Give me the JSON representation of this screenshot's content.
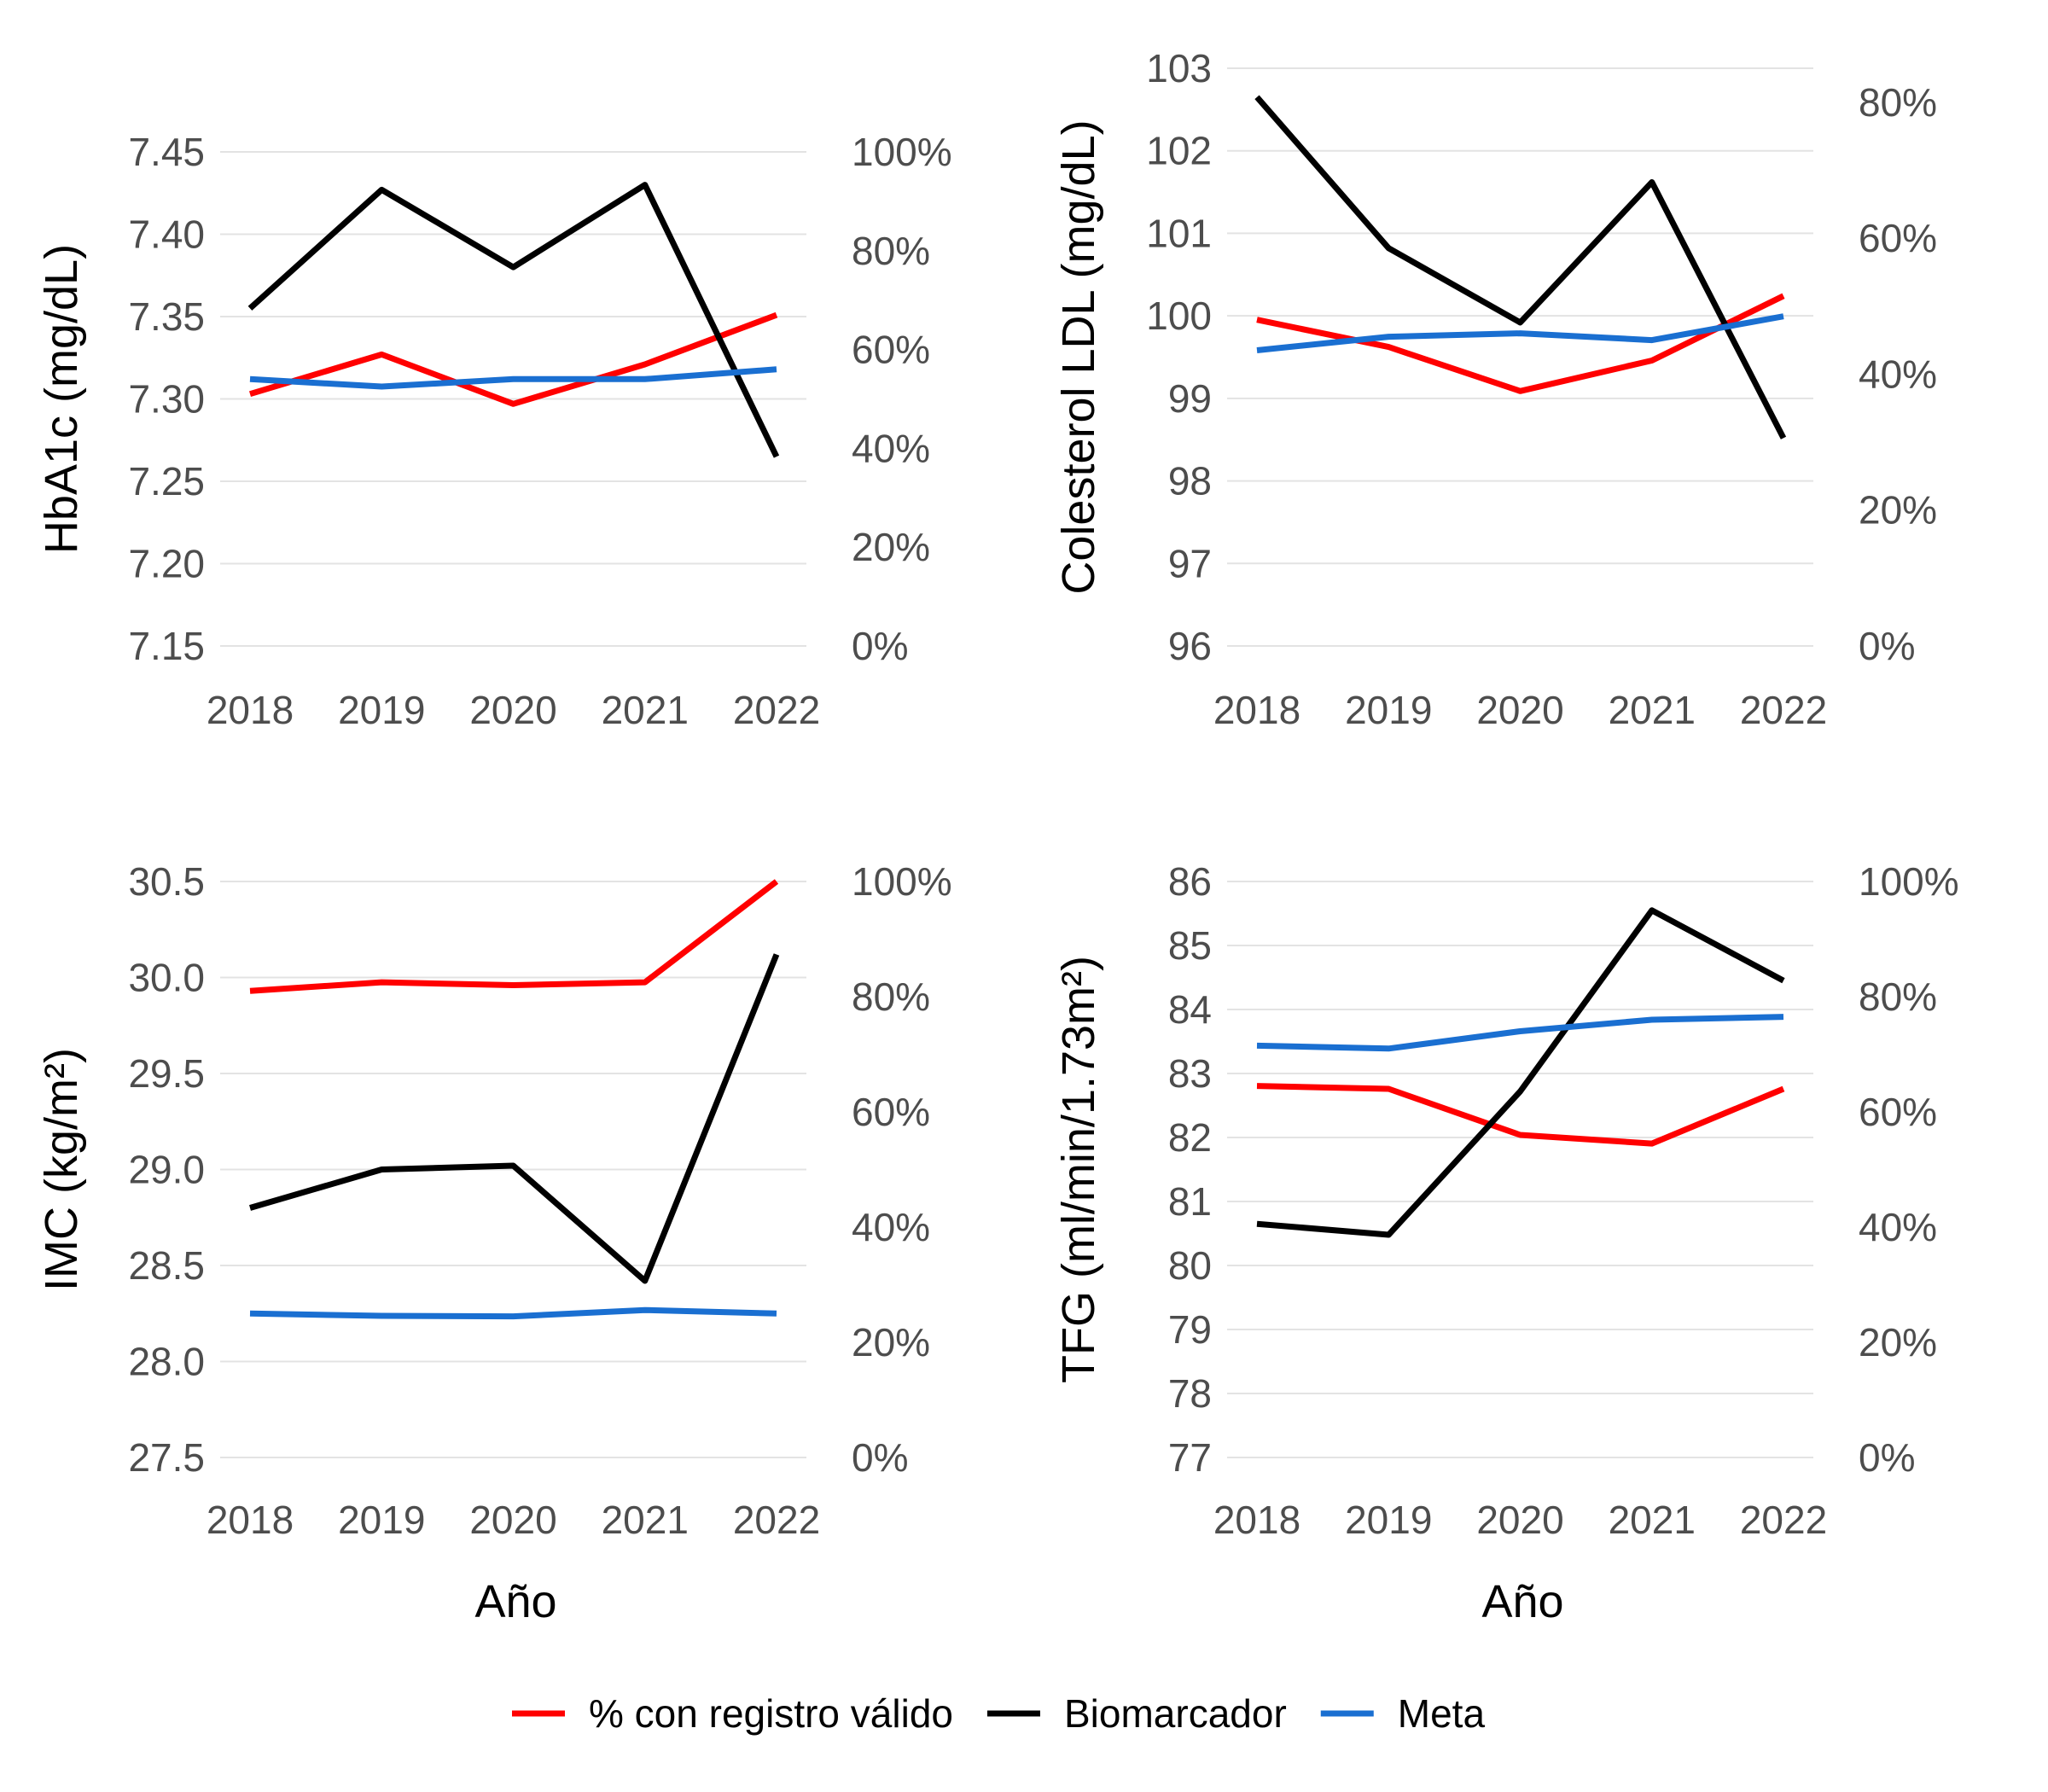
{
  "colors": {
    "valid": "#ff0000",
    "biomarker": "#000000",
    "target": "#1a6fd1"
  },
  "legend": {
    "items": [
      {
        "key": "valid",
        "label": "% con registro válido"
      },
      {
        "key": "biomarker",
        "label": "Biomarcador"
      },
      {
        "key": "target",
        "label": "Meta"
      }
    ]
  },
  "chart_data": [
    {
      "type": "line",
      "x": [
        2018,
        2019,
        2020,
        2021,
        2022
      ],
      "x_ticks": [
        "2018",
        "2019",
        "2020",
        "2021",
        "2022"
      ],
      "xlabel": "",
      "ylabel": "HbA1c (mg/dL)",
      "ylim": [
        7.15,
        7.45
      ],
      "y_ticks": [
        "7.15",
        "7.20",
        "7.25",
        "7.30",
        "7.35",
        "7.40",
        "7.45"
      ],
      "y2lim": [
        0,
        100
      ],
      "y2_ticks": [
        "0%",
        "20%",
        "40%",
        "60%",
        "80%",
        "100%"
      ],
      "grid": true,
      "series": [
        {
          "key": "valid",
          "name": "% con registro válido",
          "axis": "y2",
          "values": [
            51,
            59,
            49,
            57,
            67
          ]
        },
        {
          "key": "biomarker",
          "name": "Biomarcador",
          "axis": "y",
          "values": [
            7.355,
            7.427,
            7.38,
            7.43,
            7.265
          ]
        },
        {
          "key": "target",
          "name": "Meta",
          "axis": "y2",
          "values": [
            54,
            52.5,
            54,
            54,
            56
          ]
        }
      ]
    },
    {
      "type": "line",
      "x": [
        2018,
        2019,
        2020,
        2021,
        2022
      ],
      "x_ticks": [
        "2018",
        "2019",
        "2020",
        "2021",
        "2022"
      ],
      "xlabel": "",
      "ylabel": "Colesterol LDL (mg/dL)",
      "ylim": [
        96,
        103
      ],
      "y_ticks": [
        "96",
        "97",
        "98",
        "99",
        "100",
        "101",
        "102",
        "103"
      ],
      "y2lim": [
        0,
        85
      ],
      "y2_ticks": [
        "0%",
        "20%",
        "40%",
        "60%",
        "80%"
      ],
      "grid": true,
      "series": [
        {
          "key": "valid",
          "name": "% con registro válido",
          "axis": "y2",
          "values": [
            48,
            44,
            37.5,
            42,
            51.5
          ]
        },
        {
          "key": "biomarker",
          "name": "Biomarcador",
          "axis": "y",
          "values": [
            102.65,
            100.82,
            99.92,
            101.62,
            98.52
          ]
        },
        {
          "key": "target",
          "name": "Meta",
          "axis": "y2",
          "values": [
            43.5,
            45.5,
            46,
            45,
            48.5
          ]
        }
      ]
    },
    {
      "type": "line",
      "x": [
        2018,
        2019,
        2020,
        2021,
        2022
      ],
      "x_ticks": [
        "2018",
        "2019",
        "2020",
        "2021",
        "2022"
      ],
      "xlabel": "Año",
      "ylabel": "IMC (kg/m²)",
      "ylim": [
        27.5,
        30.5
      ],
      "y_ticks": [
        "27.5",
        "28.0",
        "28.5",
        "29.0",
        "29.5",
        "30.0",
        "30.5"
      ],
      "y2lim": [
        0,
        100
      ],
      "y2_ticks": [
        "0%",
        "20%",
        "40%",
        "60%",
        "80%",
        "100%"
      ],
      "grid": true,
      "series": [
        {
          "key": "valid",
          "name": "% con registro válido",
          "axis": "y2",
          "values": [
            81,
            82.5,
            82,
            82.5,
            100
          ]
        },
        {
          "key": "biomarker",
          "name": "Biomarcador",
          "axis": "y",
          "values": [
            28.8,
            29.0,
            29.02,
            28.42,
            30.12
          ]
        },
        {
          "key": "target",
          "name": "Meta",
          "axis": "y2",
          "values": [
            25,
            24.6,
            24.5,
            25.6,
            25
          ]
        }
      ]
    },
    {
      "type": "line",
      "x": [
        2018,
        2019,
        2020,
        2021,
        2022
      ],
      "x_ticks": [
        "2018",
        "2019",
        "2020",
        "2021",
        "2022"
      ],
      "xlabel": "Año",
      "ylabel": "TFG (ml/min/1.73m²)",
      "ylim": [
        77,
        86
      ],
      "y_ticks": [
        "77",
        "78",
        "79",
        "80",
        "81",
        "82",
        "83",
        "84",
        "85",
        "86"
      ],
      "y2lim": [
        0,
        100
      ],
      "y2_ticks": [
        "0%",
        "20%",
        "40%",
        "60%",
        "80%",
        "100%"
      ],
      "grid": true,
      "series": [
        {
          "key": "valid",
          "name": "% con registro válido",
          "axis": "y2",
          "values": [
            64.5,
            64,
            56,
            54.5,
            64
          ]
        },
        {
          "key": "biomarker",
          "name": "Biomarcador",
          "axis": "y",
          "values": [
            80.65,
            80.48,
            82.72,
            85.55,
            84.45
          ]
        },
        {
          "key": "target",
          "name": "Meta",
          "axis": "y2",
          "values": [
            71.5,
            71,
            74,
            76,
            76.5
          ]
        }
      ]
    }
  ]
}
